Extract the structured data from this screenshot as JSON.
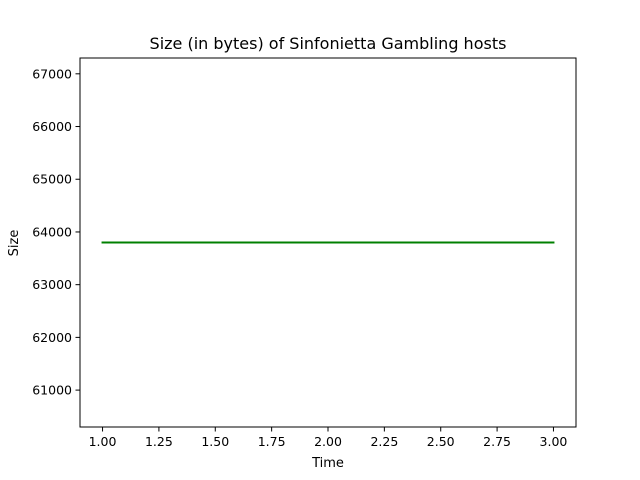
{
  "chart_data": {
    "type": "line",
    "title": "Size (in bytes) of Sinfonietta Gambling hosts",
    "xlabel": "Time",
    "ylabel": "Size",
    "x": [
      1,
      2,
      3
    ],
    "series": [
      {
        "values": [
          63800,
          63800,
          63800
        ],
        "color": "#008000"
      }
    ],
    "xlim": [
      0.9,
      3.1
    ],
    "ylim": [
      60300,
      67300
    ],
    "xticks": [
      1.0,
      1.25,
      1.5,
      1.75,
      2.0,
      2.25,
      2.5,
      2.75,
      3.0
    ],
    "xtick_labels": [
      "1.00",
      "1.25",
      "1.50",
      "1.75",
      "2.00",
      "2.25",
      "2.50",
      "2.75",
      "3.00"
    ],
    "yticks": [
      61000,
      62000,
      63000,
      64000,
      65000,
      66000,
      67000
    ],
    "ytick_labels": [
      "61000",
      "62000",
      "63000",
      "64000",
      "65000",
      "66000",
      "67000"
    ],
    "grid": false,
    "legend": false
  }
}
